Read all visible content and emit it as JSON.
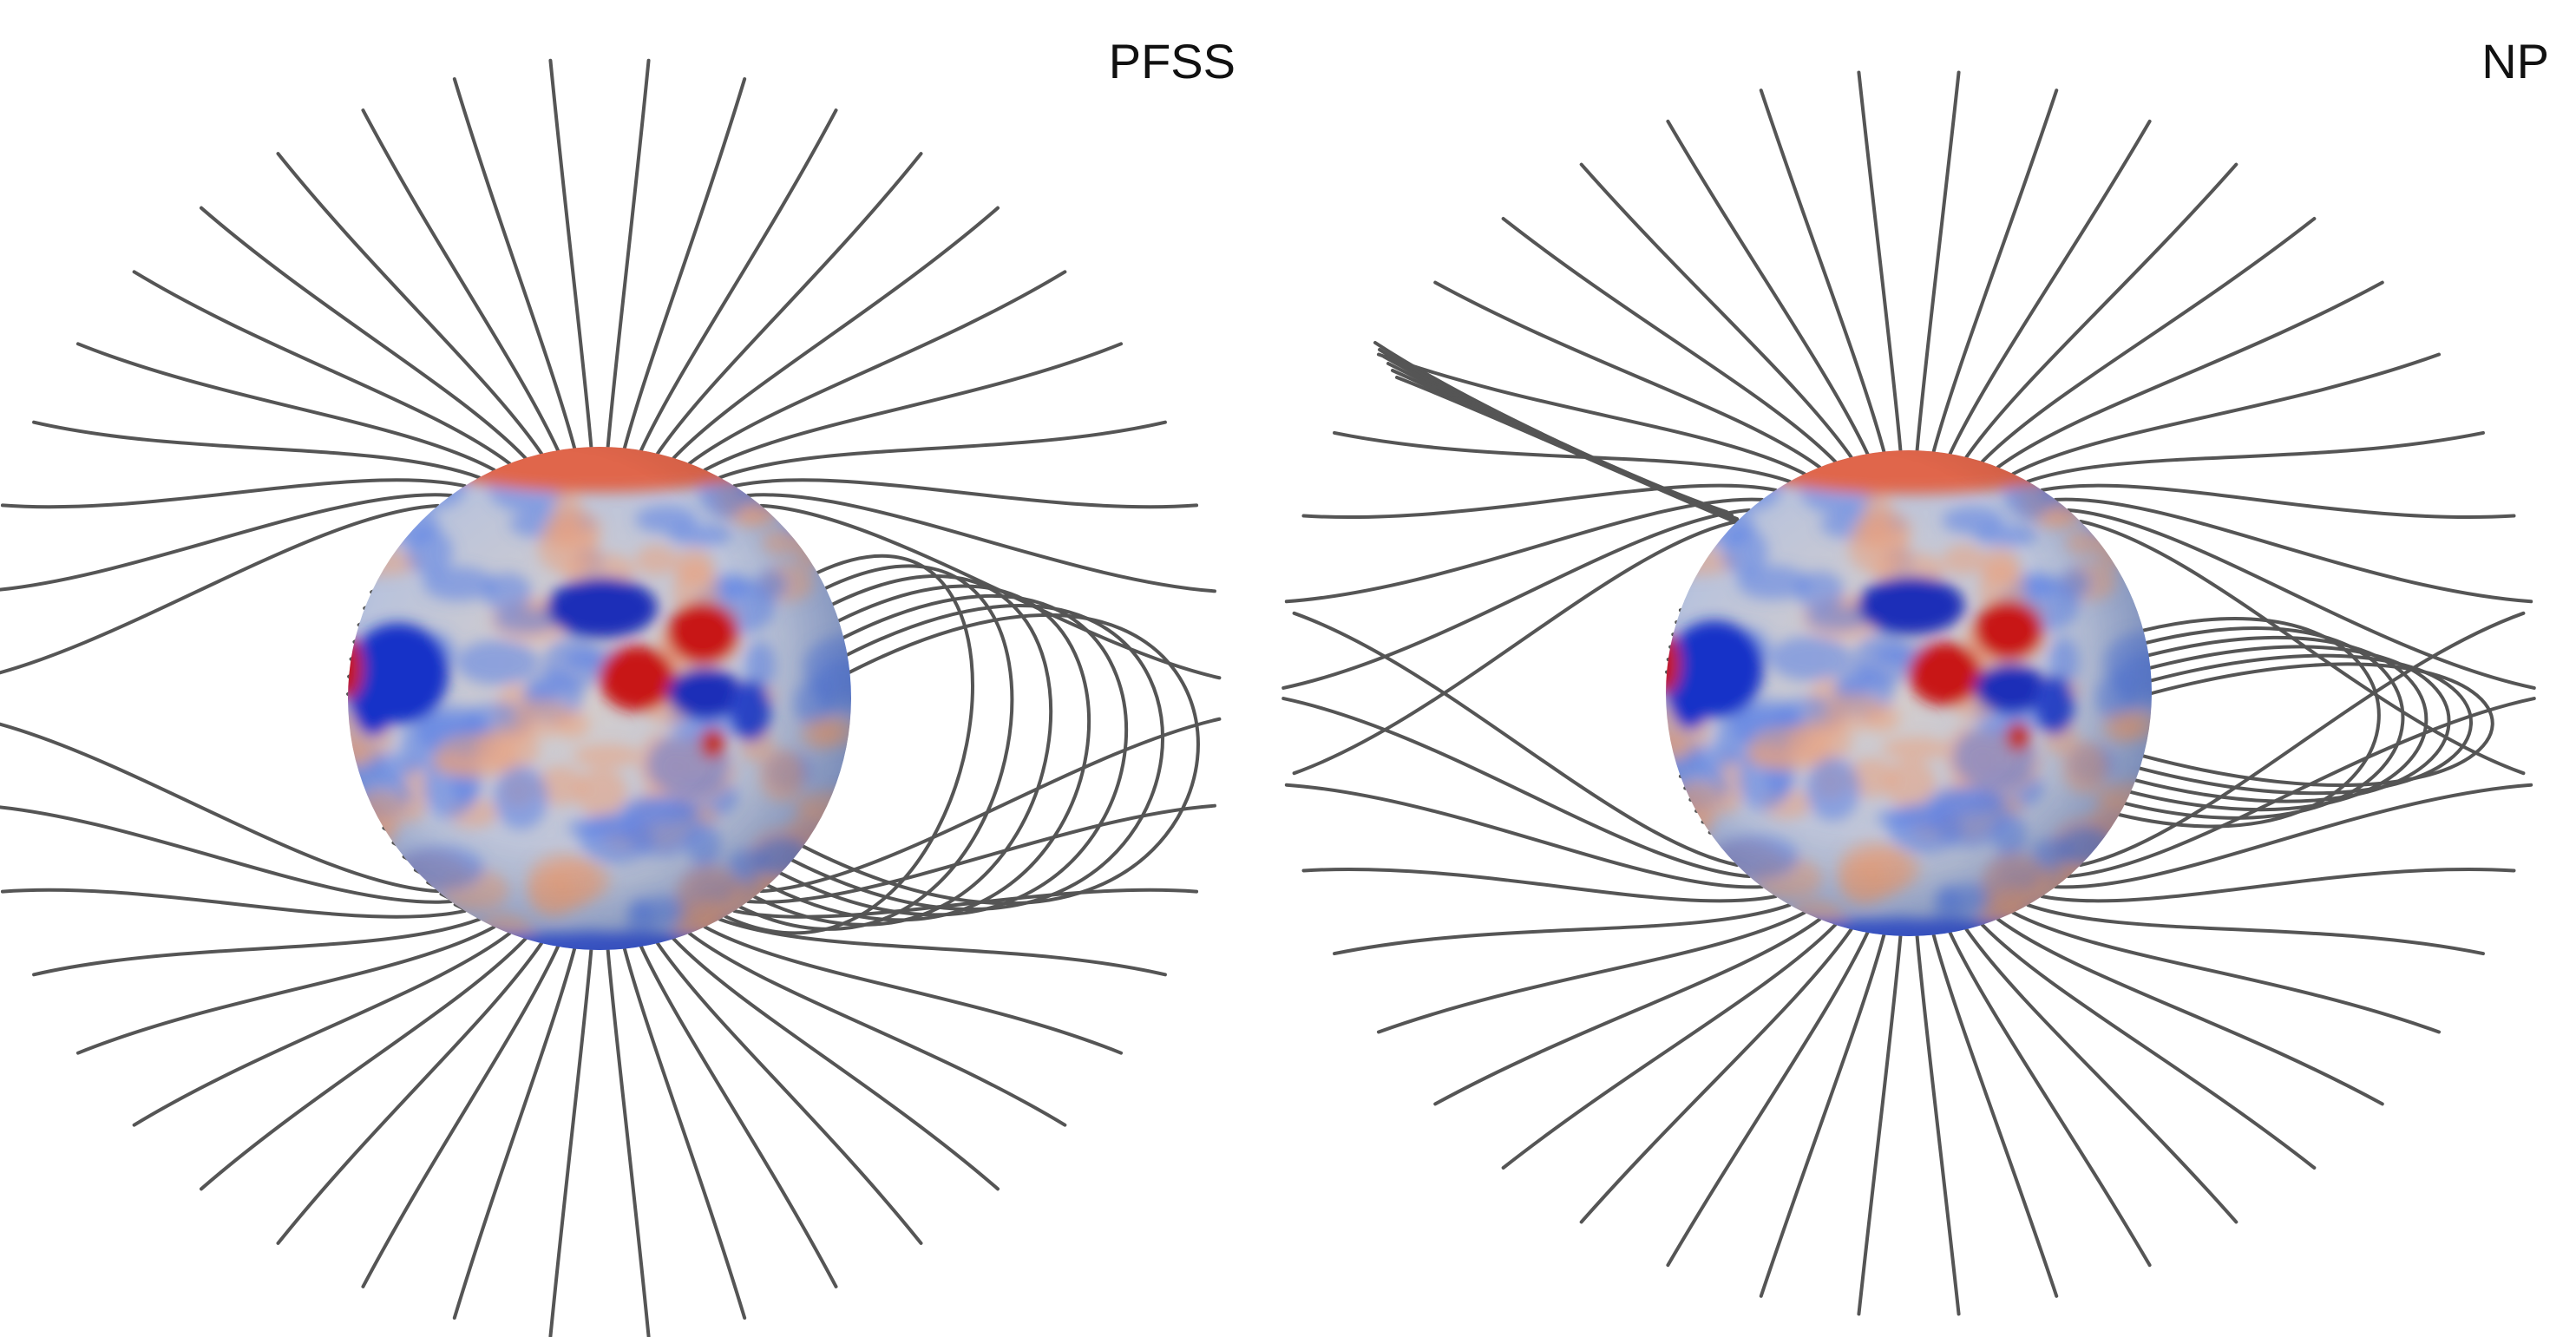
{
  "panels": [
    {
      "label": "PFSS"
    },
    {
      "label": "NP"
    }
  ]
}
